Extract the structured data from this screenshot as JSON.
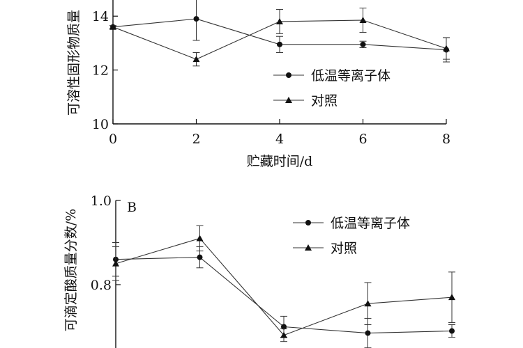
{
  "chart_data": [
    {
      "type": "line",
      "title": "",
      "xlabel": "贮藏时间/d",
      "ylabel": "可溶性固形物质量",
      "x": [
        0,
        2,
        4,
        6,
        8
      ],
      "x_ticks": [
        "0",
        "2",
        "4",
        "6",
        "8"
      ],
      "y_ticks": [
        "10",
        "12",
        "14"
      ],
      "xlim": [
        0,
        8
      ],
      "ylim": [
        10,
        14.6
      ],
      "grid": false,
      "legend_position": "right",
      "series": [
        {
          "name": "低温等离子体",
          "marker": "circle",
          "values": [
            13.6,
            13.9,
            12.95,
            12.95,
            12.75
          ],
          "errors": [
            0.05,
            0.8,
            0.3,
            0.12,
            0.45
          ]
        },
        {
          "name": "对照",
          "marker": "triangle",
          "values": [
            13.6,
            12.4,
            13.8,
            13.85,
            12.8
          ],
          "errors": [
            0.05,
            0.25,
            0.45,
            0.45,
            0.4
          ]
        }
      ]
    },
    {
      "type": "line",
      "panel_label": "B",
      "title": "",
      "xlabel": "",
      "ylabel": "可滴定酸质量分数/%",
      "x": [
        0,
        2,
        4,
        6,
        8
      ],
      "x_ticks": [],
      "y_ticks": [
        "0.8",
        "1.0"
      ],
      "xlim": [
        0,
        8
      ],
      "ylim": [
        0.6,
        1.0
      ],
      "grid": false,
      "legend_position": "top-right",
      "series": [
        {
          "name": "低温等离子体",
          "marker": "circle",
          "values": [
            0.86,
            0.865,
            0.7,
            0.685,
            0.69
          ],
          "errors": [
            0.04,
            0.025,
            0.025,
            0.035,
            0.015
          ]
        },
        {
          "name": "对照",
          "marker": "triangle",
          "values": [
            0.85,
            0.91,
            0.68,
            0.755,
            0.77
          ],
          "errors": [
            0.04,
            0.03,
            0.015,
            0.05,
            0.06
          ]
        }
      ]
    }
  ]
}
